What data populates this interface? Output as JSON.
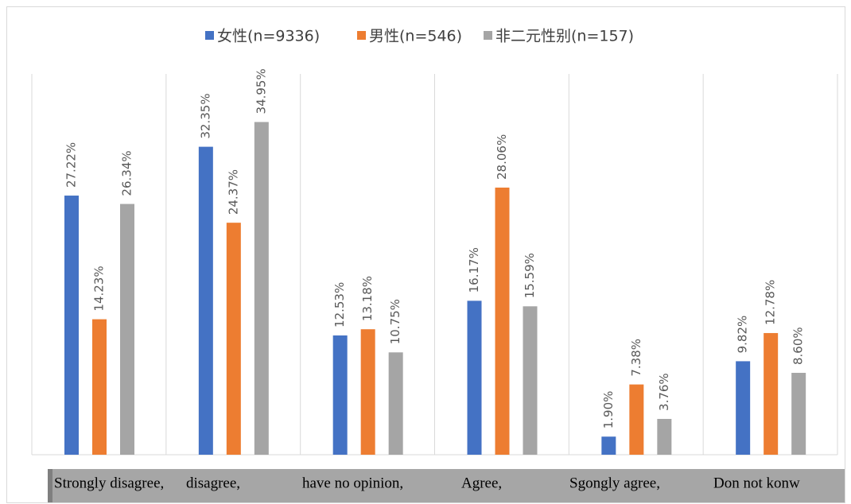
{
  "chart_data": {
    "type": "bar",
    "categories": [
      "Strongly disagree,",
      "disagree,",
      "have no opinion,",
      "Agree,",
      "Sgongly agree,",
      "Don not konw"
    ],
    "series": [
      {
        "name": "女性(n=9336)",
        "color": "#4472c4",
        "values": [
          27.22,
          32.35,
          12.53,
          16.17,
          1.9,
          9.82
        ],
        "value_labels": [
          "27.22%",
          "32.35%",
          "12.53%",
          "16.17%",
          "1.90%",
          "9.82%"
        ]
      },
      {
        "name": "男性(n=546)",
        "color": "#ed7d31",
        "values": [
          14.23,
          24.37,
          13.18,
          28.06,
          7.38,
          12.78
        ],
        "value_labels": [
          "14.23%",
          "24.37%",
          "13.18%",
          "28.06%",
          "7.38%",
          "12.78%"
        ]
      },
      {
        "name": "非二元性别(n=157)",
        "color": "#a5a5a5",
        "values": [
          26.34,
          34.95,
          10.75,
          15.59,
          3.76,
          8.6
        ],
        "value_labels": [
          "26.34%",
          "34.95%",
          "10.75%",
          "15.59%",
          "3.76%",
          "8.60%"
        ]
      }
    ],
    "ylim": [
      0,
      40
    ],
    "legend": "top"
  }
}
